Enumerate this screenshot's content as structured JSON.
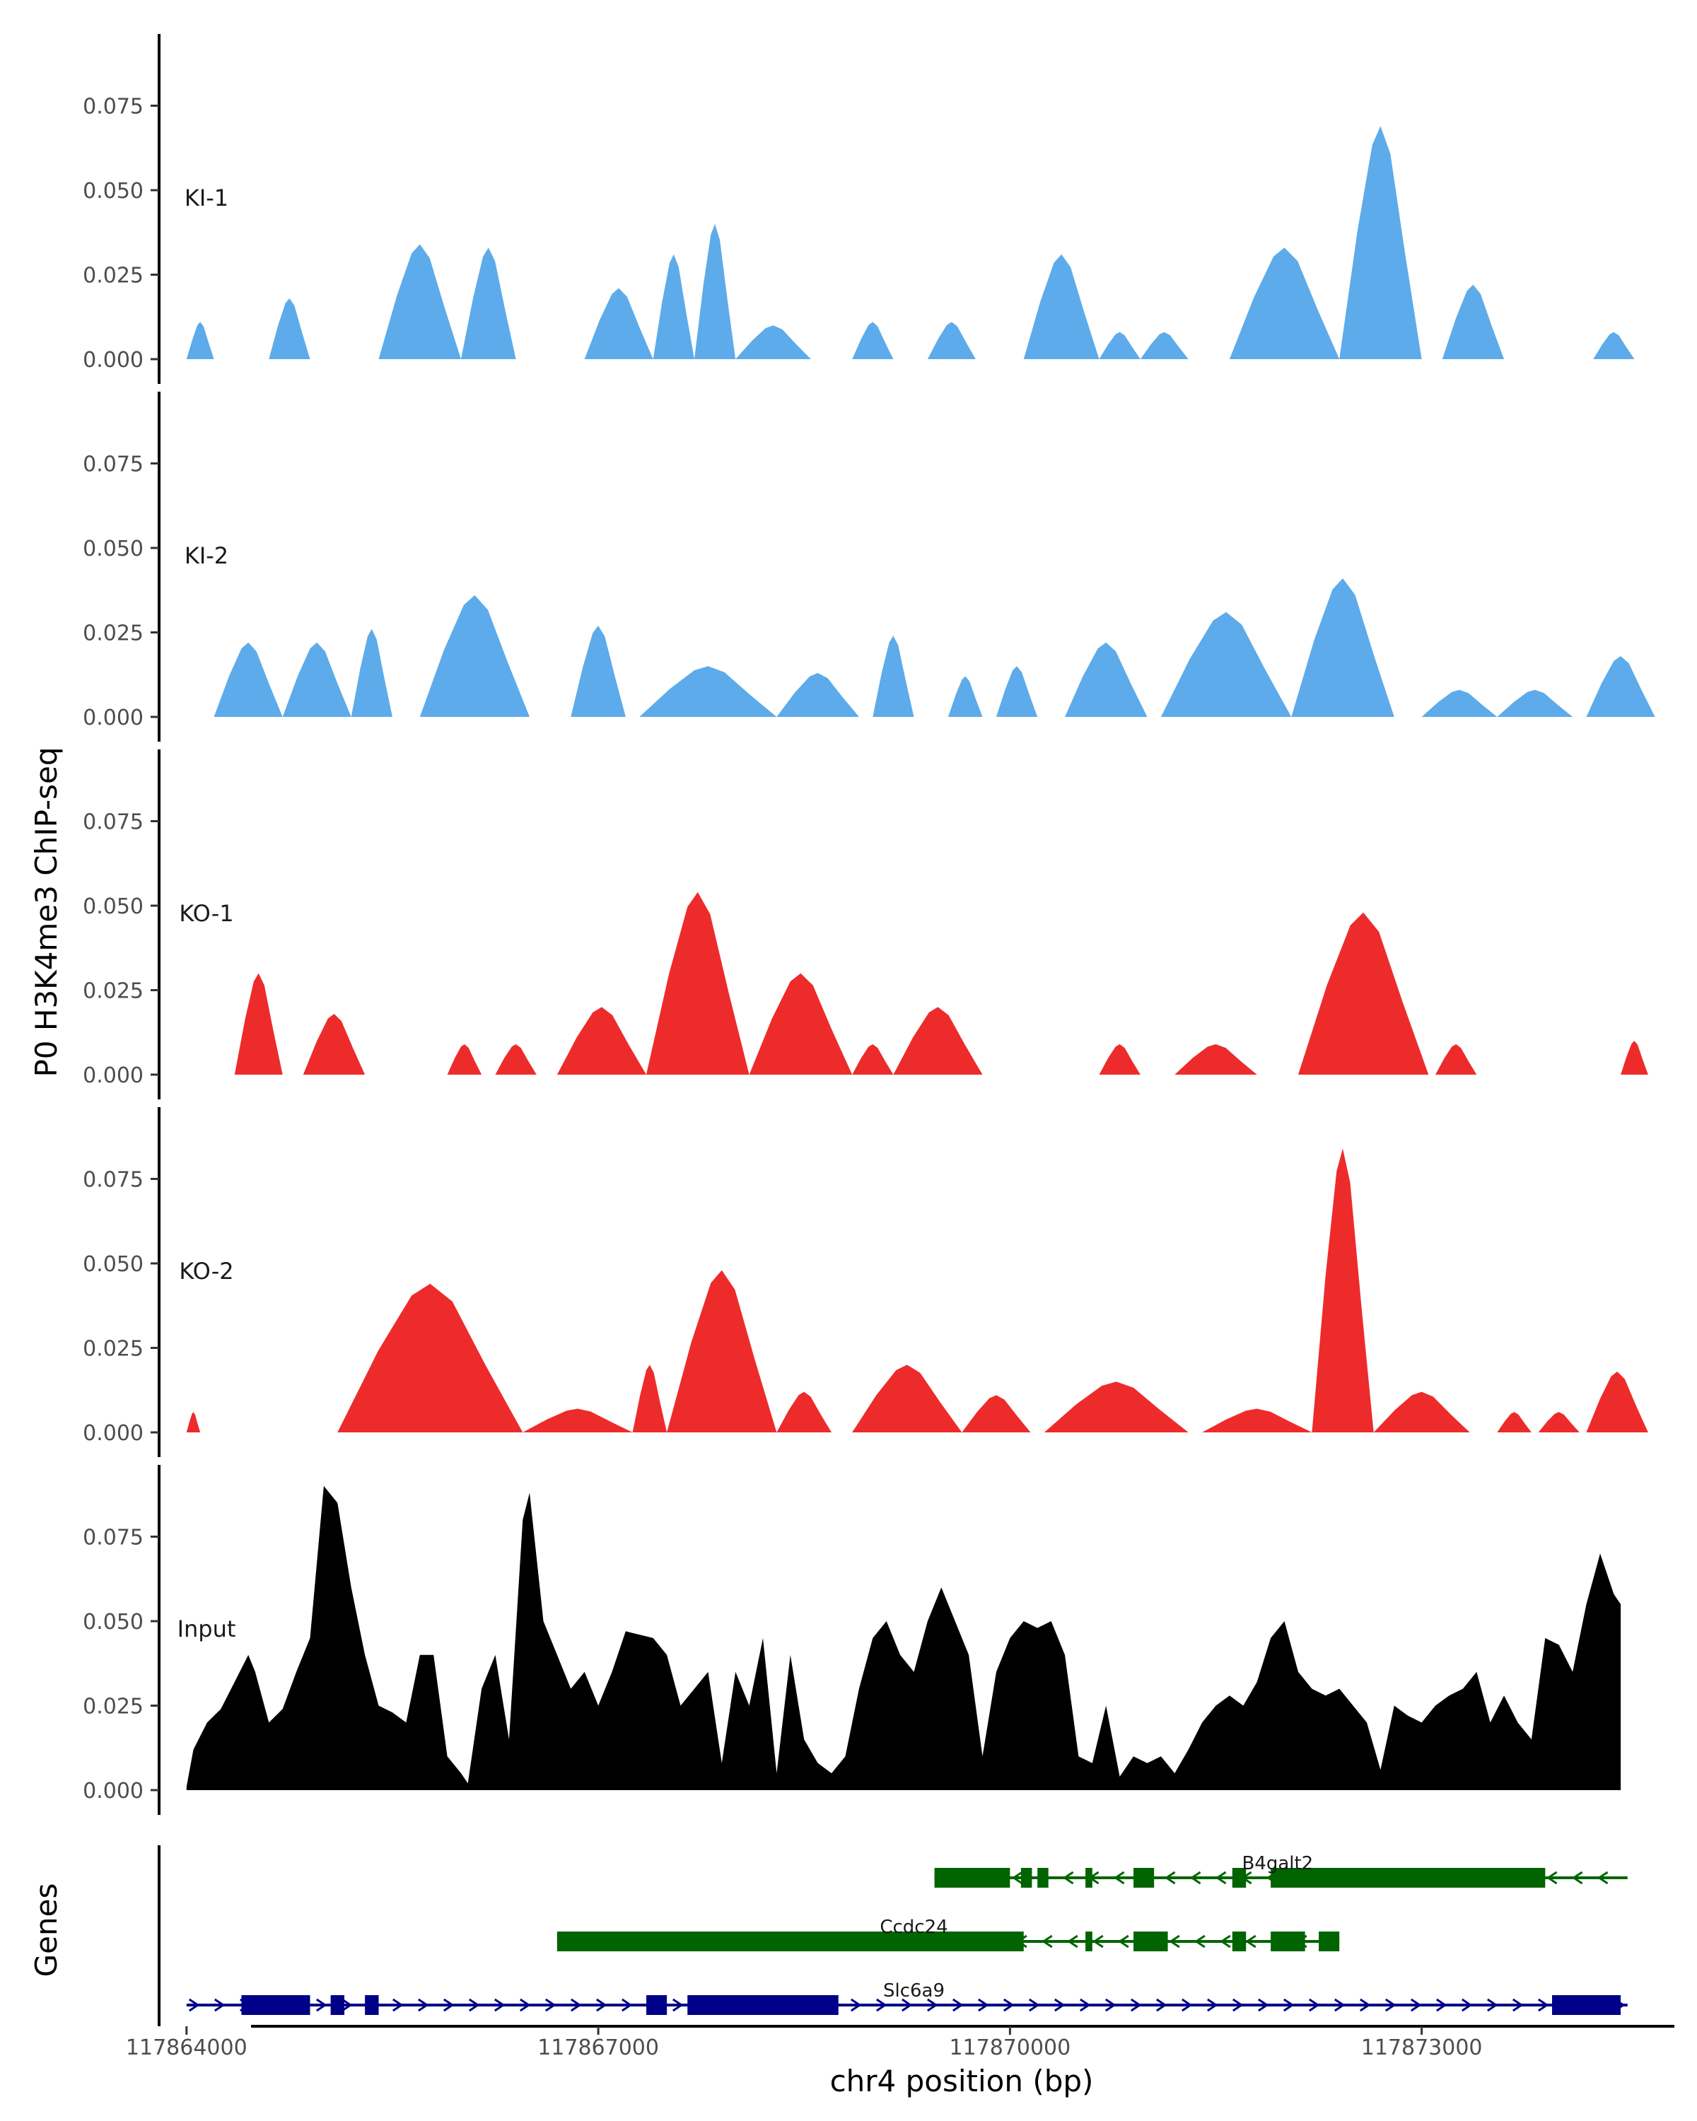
{
  "chart_data": {
    "type": "area",
    "title": "",
    "ylabel": "P0 H3K4me3 ChIP-seq",
    "xlabel": "chr4 position (bp)",
    "genes_label": "Genes",
    "xlim": [
      117863800,
      117874800
    ],
    "ylim": [
      0,
      0.095
    ],
    "x_ticks": [
      117864000,
      117867000,
      117870000,
      117873000
    ],
    "x_tick_labels": [
      "117864000",
      "117867000",
      "117870000",
      "117873000"
    ],
    "y_ticks": [
      0,
      0.025,
      0.05,
      0.075
    ],
    "y_tick_labels": [
      "0.000",
      "0.025",
      "0.050",
      "0.075"
    ],
    "tracks": [
      {
        "name": "KI-1",
        "color": "#5dabea",
        "peaks": [
          [
            117864000,
            117864200,
            0.011
          ],
          [
            117864600,
            117864900,
            0.018
          ],
          [
            117865400,
            117866000,
            0.034
          ],
          [
            117866000,
            117866400,
            0.033
          ],
          [
            117866900,
            117867400,
            0.021
          ],
          [
            117867400,
            117867700,
            0.031
          ],
          [
            117867700,
            117868000,
            0.04
          ],
          [
            117868000,
            117868550,
            0.01
          ],
          [
            117868850,
            117869150,
            0.011
          ],
          [
            117869400,
            117869750,
            0.011
          ],
          [
            117870100,
            117870650,
            0.031
          ],
          [
            117870650,
            117870950,
            0.008
          ],
          [
            117870950,
            117871300,
            0.008
          ],
          [
            117871600,
            117872400,
            0.033
          ],
          [
            117872400,
            117873000,
            0.069
          ],
          [
            117873150,
            117873600,
            0.022
          ],
          [
            117874250,
            117874550,
            0.008
          ]
        ]
      },
      {
        "name": "KI-2",
        "color": "#5dabea",
        "peaks": [
          [
            117864200,
            117864700,
            0.022
          ],
          [
            117864700,
            117865200,
            0.022
          ],
          [
            117865200,
            117865500,
            0.026
          ],
          [
            117865700,
            117866500,
            0.036
          ],
          [
            117866800,
            117867200,
            0.027
          ],
          [
            117867300,
            117868300,
            0.015
          ],
          [
            117868300,
            117868900,
            0.013
          ],
          [
            117869000,
            117869300,
            0.024
          ],
          [
            117869550,
            117869800,
            0.012
          ],
          [
            117869900,
            117870200,
            0.015
          ],
          [
            117870400,
            117871000,
            0.022
          ],
          [
            117871100,
            117872050,
            0.031
          ],
          [
            117872050,
            117872800,
            0.041
          ],
          [
            117873000,
            117873550,
            0.008
          ],
          [
            117873550,
            117874100,
            0.008
          ],
          [
            117874200,
            117874700,
            0.018
          ]
        ]
      },
      {
        "name": "KO-1",
        "color": "#ee2b2b",
        "peaks": [
          [
            117864350,
            117864700,
            0.03
          ],
          [
            117864850,
            117865300,
            0.018
          ],
          [
            117865900,
            117866150,
            0.009
          ],
          [
            117866250,
            117866550,
            0.009
          ],
          [
            117866700,
            117867350,
            0.02
          ],
          [
            117867350,
            117868100,
            0.054
          ],
          [
            117868100,
            117868850,
            0.03
          ],
          [
            117868850,
            117869150,
            0.009
          ],
          [
            117869150,
            117869800,
            0.02
          ],
          [
            117870650,
            117870950,
            0.009
          ],
          [
            117871200,
            117871800,
            0.009
          ],
          [
            117872100,
            117873050,
            0.048
          ],
          [
            117873100,
            117873400,
            0.009
          ],
          [
            117874450,
            117874650,
            0.01
          ]
        ]
      },
      {
        "name": "KO-2",
        "color": "#ee2b2b",
        "peaks": [
          [
            117864000,
            117864100,
            0.006
          ],
          [
            117865100,
            117866450,
            0.044
          ],
          [
            117866450,
            117867250,
            0.007
          ],
          [
            117867250,
            117867500,
            0.02
          ],
          [
            117867500,
            117868300,
            0.048
          ],
          [
            117868300,
            117868700,
            0.012
          ],
          [
            117868850,
            117869650,
            0.02
          ],
          [
            117869650,
            117870150,
            0.011
          ],
          [
            117870250,
            117871300,
            0.015
          ],
          [
            117871400,
            117872200,
            0.007
          ],
          [
            117872200,
            117872650,
            0.084
          ],
          [
            117872650,
            117873350,
            0.012
          ],
          [
            117873550,
            117873800,
            0.006
          ],
          [
            117873850,
            117874150,
            0.006
          ],
          [
            117874200,
            117874650,
            0.018
          ]
        ]
      },
      {
        "name": "Input",
        "color": "#000000",
        "points": [
          [
            117864000,
            0.001
          ],
          [
            117864050,
            0.012
          ],
          [
            117864150,
            0.02
          ],
          [
            117864250,
            0.024
          ],
          [
            117864350,
            0.032
          ],
          [
            117864450,
            0.04
          ],
          [
            117864500,
            0.035
          ],
          [
            117864600,
            0.02
          ],
          [
            117864700,
            0.024
          ],
          [
            117864800,
            0.035
          ],
          [
            117864900,
            0.045
          ],
          [
            117865000,
            0.09
          ],
          [
            117865100,
            0.085
          ],
          [
            117865200,
            0.06
          ],
          [
            117865300,
            0.04
          ],
          [
            117865400,
            0.025
          ],
          [
            117865500,
            0.023
          ],
          [
            117865600,
            0.02
          ],
          [
            117865700,
            0.04
          ],
          [
            117865800,
            0.04
          ],
          [
            117865900,
            0.01
          ],
          [
            117866000,
            0.005
          ],
          [
            117866050,
            0.002
          ],
          [
            117866150,
            0.03
          ],
          [
            117866250,
            0.04
          ],
          [
            117866350,
            0.015
          ],
          [
            117866450,
            0.08
          ],
          [
            117866500,
            0.088
          ],
          [
            117866600,
            0.05
          ],
          [
            117866700,
            0.04
          ],
          [
            117866800,
            0.03
          ],
          [
            117866900,
            0.035
          ],
          [
            117867000,
            0.025
          ],
          [
            117867100,
            0.035
          ],
          [
            117867200,
            0.047
          ],
          [
            117867300,
            0.046
          ],
          [
            117867400,
            0.045
          ],
          [
            117867500,
            0.04
          ],
          [
            117867600,
            0.025
          ],
          [
            117867700,
            0.03
          ],
          [
            117867800,
            0.035
          ],
          [
            117867900,
            0.008
          ],
          [
            117868000,
            0.035
          ],
          [
            117868100,
            0.025
          ],
          [
            117868200,
            0.045
          ],
          [
            117868300,
            0.005
          ],
          [
            117868400,
            0.04
          ],
          [
            117868500,
            0.015
          ],
          [
            117868600,
            0.008
          ],
          [
            117868700,
            0.005
          ],
          [
            117868800,
            0.01
          ],
          [
            117868900,
            0.03
          ],
          [
            117869000,
            0.045
          ],
          [
            117869100,
            0.05
          ],
          [
            117869200,
            0.04
          ],
          [
            117869300,
            0.035
          ],
          [
            117869400,
            0.05
          ],
          [
            117869500,
            0.06
          ],
          [
            117869600,
            0.05
          ],
          [
            117869700,
            0.04
          ],
          [
            117869800,
            0.01
          ],
          [
            117869900,
            0.035
          ],
          [
            117870000,
            0.045
          ],
          [
            117870100,
            0.05
          ],
          [
            117870200,
            0.048
          ],
          [
            117870300,
            0.05
          ],
          [
            117870400,
            0.04
          ],
          [
            117870500,
            0.01
          ],
          [
            117870600,
            0.008
          ],
          [
            117870700,
            0.025
          ],
          [
            117870800,
            0.004
          ],
          [
            117870900,
            0.01
          ],
          [
            117871000,
            0.008
          ],
          [
            117871100,
            0.01
          ],
          [
            117871200,
            0.005
          ],
          [
            117871300,
            0.012
          ],
          [
            117871400,
            0.02
          ],
          [
            117871500,
            0.025
          ],
          [
            117871600,
            0.028
          ],
          [
            117871700,
            0.025
          ],
          [
            117871800,
            0.032
          ],
          [
            117871900,
            0.045
          ],
          [
            117872000,
            0.05
          ],
          [
            117872100,
            0.035
          ],
          [
            117872200,
            0.03
          ],
          [
            117872300,
            0.028
          ],
          [
            117872400,
            0.03
          ],
          [
            117872500,
            0.025
          ],
          [
            117872600,
            0.02
          ],
          [
            117872700,
            0.006
          ],
          [
            117872800,
            0.025
          ],
          [
            117872900,
            0.022
          ],
          [
            117873000,
            0.02
          ],
          [
            117873100,
            0.025
          ],
          [
            117873200,
            0.028
          ],
          [
            117873300,
            0.03
          ],
          [
            117873400,
            0.035
          ],
          [
            117873500,
            0.02
          ],
          [
            117873600,
            0.028
          ],
          [
            117873700,
            0.02
          ],
          [
            117873800,
            0.015
          ],
          [
            117873900,
            0.045
          ],
          [
            117874000,
            0.043
          ],
          [
            117874100,
            0.035
          ],
          [
            117874200,
            0.055
          ],
          [
            117874300,
            0.07
          ],
          [
            117874400,
            0.058
          ],
          [
            117874450,
            0.055
          ]
        ]
      }
    ],
    "genes": [
      {
        "name": "B4galt2",
        "color": "#006400",
        "strand": "-",
        "start": 117869450,
        "end": 117874500,
        "exons": [
          [
            117869450,
            117870000
          ],
          [
            117870080,
            117870160
          ],
          [
            117870200,
            117870280
          ],
          [
            117870550,
            117870600
          ],
          [
            117870900,
            117871050
          ],
          [
            117871620,
            117871720
          ],
          [
            117871900,
            117873900
          ]
        ]
      },
      {
        "name": "Ccdc24",
        "color": "#006400",
        "strand": "-",
        "start": 117866700,
        "end": 117872400,
        "exons": [
          [
            117866700,
            117870100
          ],
          [
            117870550,
            117870600
          ],
          [
            117870900,
            117871150
          ],
          [
            117871620,
            117871720
          ],
          [
            117871900,
            117872150
          ],
          [
            117872250,
            117872400
          ]
        ]
      },
      {
        "name": "Slc6a9",
        "color": "#000088",
        "strand": "+",
        "start": 117864000,
        "end": 117874500,
        "exons": [
          [
            117864400,
            117864900
          ],
          [
            117865050,
            117865150
          ],
          [
            117865300,
            117865400
          ],
          [
            117867350,
            117867500
          ],
          [
            117867650,
            117868750
          ],
          [
            117873950,
            117874450
          ]
        ]
      }
    ]
  }
}
